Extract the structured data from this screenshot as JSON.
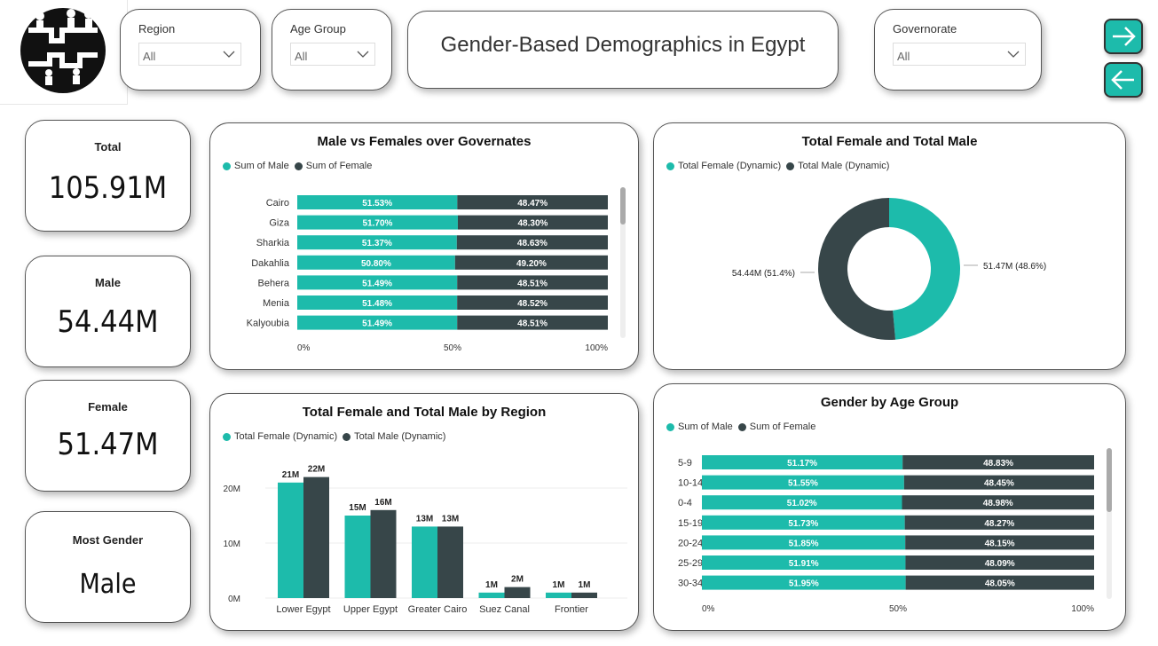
{
  "header": {
    "title": "Gender-Based Demographics in Egypt",
    "filters": [
      {
        "label": "Region",
        "value": "All"
      },
      {
        "label": "Age Group",
        "value": "All"
      },
      {
        "label": "Governorate",
        "value": "All"
      }
    ],
    "nav_next_icon": "arrow-right-icon",
    "nav_back_icon": "arrow-left-icon"
  },
  "colors": {
    "male": "#1dbbab",
    "female": "#374649"
  },
  "kpis": {
    "total": {
      "label": "Total",
      "value": "105.91M"
    },
    "male": {
      "label": "Male",
      "value": "54.44M"
    },
    "female": {
      "label": "Female",
      "value": "51.47M"
    },
    "most": {
      "label": "Most Gender",
      "value": "Male"
    }
  },
  "chart_data": [
    {
      "id": "gov",
      "type": "bar",
      "orientation": "horizontal-100%-stacked",
      "title": "Male vs Females over Governates",
      "legend": [
        "Sum of Male",
        "Sum of Female"
      ],
      "categories": [
        "Cairo",
        "Giza",
        "Sharkia",
        "Dakahlia",
        "Behera",
        "Menia",
        "Kalyoubia"
      ],
      "series": [
        {
          "name": "Sum of Male",
          "values": [
            51.53,
            51.7,
            51.37,
            50.8,
            51.49,
            51.48,
            51.49
          ],
          "labels": [
            "51.53%",
            "51.70%",
            "51.37%",
            "50.80%",
            "51.49%",
            "51.48%",
            "51.49%"
          ]
        },
        {
          "name": "Sum of Female",
          "values": [
            48.47,
            48.3,
            48.63,
            49.2,
            48.51,
            48.52,
            48.51
          ],
          "labels": [
            "48.47%",
            "48.30%",
            "48.63%",
            "49.20%",
            "48.51%",
            "48.52%",
            "48.51%"
          ]
        }
      ],
      "xticks": [
        "0%",
        "50%",
        "100%"
      ]
    },
    {
      "id": "donut",
      "type": "pie",
      "title": "Total Female and Total Male",
      "legend": [
        "Total Female (Dynamic)",
        "Total Male (Dynamic)"
      ],
      "values": [
        51.47,
        54.44
      ],
      "labels": [
        "51.47M (48.6%)",
        "54.44M (51.4%)"
      ]
    },
    {
      "id": "region",
      "type": "bar",
      "orientation": "vertical-clustered",
      "title": "Total Female and Total Male by Region",
      "legend": [
        "Total Female (Dynamic)",
        "Total Male (Dynamic)"
      ],
      "categories": [
        "Lower Egypt",
        "Upper Egypt",
        "Greater Cairo",
        "Suez Canal",
        "Frontier"
      ],
      "series": [
        {
          "name": "Total Female (Dynamic)",
          "values": [
            21,
            15,
            13,
            1,
            1
          ],
          "labels": [
            "21M",
            "15M",
            "13M",
            "1M",
            "1M"
          ]
        },
        {
          "name": "Total Male (Dynamic)",
          "values": [
            22,
            16,
            13,
            2,
            1
          ],
          "labels": [
            "22M",
            "16M",
            "13M",
            "2M",
            "1M"
          ]
        }
      ],
      "yticks": [
        "0M",
        "10M",
        "20M"
      ],
      "ylim": [
        0,
        25
      ]
    },
    {
      "id": "age",
      "type": "bar",
      "orientation": "horizontal-100%-stacked",
      "title": "Gender by Age Group",
      "legend": [
        "Sum of Male",
        "Sum of Female"
      ],
      "categories": [
        "5-9",
        "10-14",
        "0-4",
        "15-19",
        "20-24",
        "25-29",
        "30-34"
      ],
      "series": [
        {
          "name": "Sum of Male",
          "values": [
            51.17,
            51.55,
            51.02,
            51.73,
            51.85,
            51.91,
            51.95
          ],
          "labels": [
            "51.17%",
            "51.55%",
            "51.02%",
            "51.73%",
            "51.85%",
            "51.91%",
            "51.95%"
          ]
        },
        {
          "name": "Sum of Female",
          "values": [
            48.83,
            48.45,
            48.98,
            48.27,
            48.15,
            48.09,
            48.05
          ],
          "labels": [
            "48.83%",
            "48.45%",
            "48.98%",
            "48.27%",
            "48.15%",
            "48.09%",
            "48.05%"
          ]
        }
      ],
      "xticks": [
        "0%",
        "50%",
        "100%"
      ]
    }
  ]
}
